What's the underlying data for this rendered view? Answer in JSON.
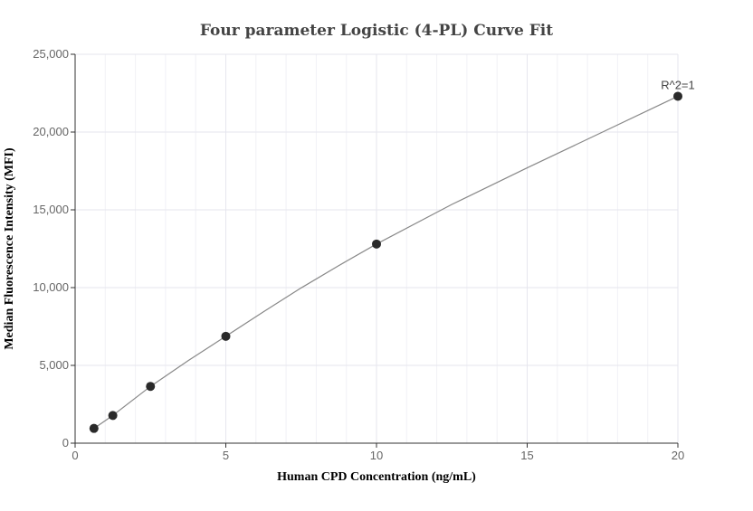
{
  "chart_data": {
    "type": "scatter",
    "title": "Four parameter Logistic (4-PL) Curve Fit",
    "xlabel": "Human CPD Concentration (ng/mL)",
    "ylabel": "Median Fluorescence Intensity (MFI)",
    "xlim": [
      0,
      20
    ],
    "ylim": [
      0,
      25000
    ],
    "x_ticks": [
      0,
      5,
      10,
      15,
      20
    ],
    "x_tick_labels": [
      "0",
      "5",
      "10",
      "15",
      "20"
    ],
    "y_ticks": [
      0,
      5000,
      10000,
      15000,
      20000,
      25000
    ],
    "y_tick_labels": [
      "0",
      "5,000",
      "10,000",
      "15,000",
      "20,000",
      "25,000"
    ],
    "grid": true,
    "series": [
      {
        "points": [
          {
            "x": 0.625,
            "y": 950
          },
          {
            "x": 1.25,
            "y": 1780
          },
          {
            "x": 2.5,
            "y": 3650
          },
          {
            "x": 5,
            "y": 6870
          },
          {
            "x": 10,
            "y": 12800
          },
          {
            "x": 20,
            "y": 22300
          }
        ],
        "color": "#2a2a2a"
      }
    ],
    "fit_curve": {
      "type": "4PL",
      "points": [
        {
          "x": 0.625,
          "y": 950
        },
        {
          "x": 1.25,
          "y": 1780
        },
        {
          "x": 2.5,
          "y": 3650
        },
        {
          "x": 3.75,
          "y": 5300
        },
        {
          "x": 5,
          "y": 6870
        },
        {
          "x": 6.25,
          "y": 8450
        },
        {
          "x": 7.5,
          "y": 9980
        },
        {
          "x": 8.75,
          "y": 11420
        },
        {
          "x": 10,
          "y": 12800
        },
        {
          "x": 12.5,
          "y": 15350
        },
        {
          "x": 15,
          "y": 17700
        },
        {
          "x": 17.5,
          "y": 20000
        },
        {
          "x": 20,
          "y": 22300
        }
      ],
      "color": "#888888"
    },
    "annotations": [
      {
        "text": "R^2=1",
        "x": 20,
        "y": 22300
      }
    ]
  }
}
